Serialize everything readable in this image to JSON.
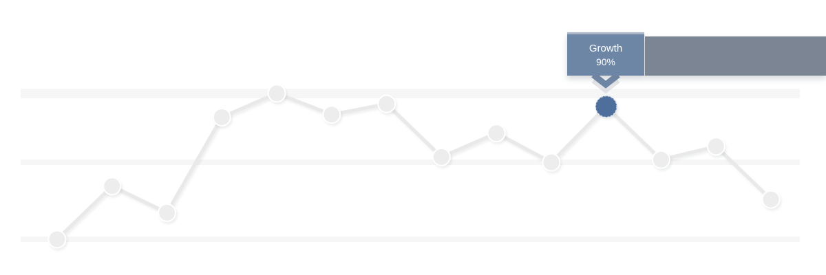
{
  "tooltip": {
    "title": "Growth",
    "value": "90%"
  },
  "colors": {
    "background": "#ffffff",
    "gridline": "#f6f6f7",
    "line": "#e9e9e9",
    "point_fill": "#ededed",
    "point_stroke": "#ffffff",
    "highlight_fill": "#4e6f9b",
    "highlight_ring": "#dde3ec",
    "tooltip_bg": "#6e86a5",
    "tooltip_border_top": "#aab6c8",
    "side_bar_bg": "#7b8594",
    "text_on_tooltip": "#ffffff"
  },
  "chart_data": {
    "type": "line",
    "title": "",
    "xlabel": "",
    "ylabel": "",
    "point_count": 14,
    "values": [
      40,
      60,
      50,
      86,
      95,
      87,
      91,
      71,
      80,
      69,
      90,
      70,
      75,
      55
    ],
    "highlight": {
      "index": 10,
      "label": "Growth",
      "value": 90,
      "value_text": "90%"
    },
    "ylim_estimate": [
      35,
      100
    ],
    "gridlines": {
      "orientation": "horizontal",
      "count": 3
    },
    "x_tick_labels": "none visible",
    "y_tick_labels": "none visible",
    "legend": "none"
  }
}
